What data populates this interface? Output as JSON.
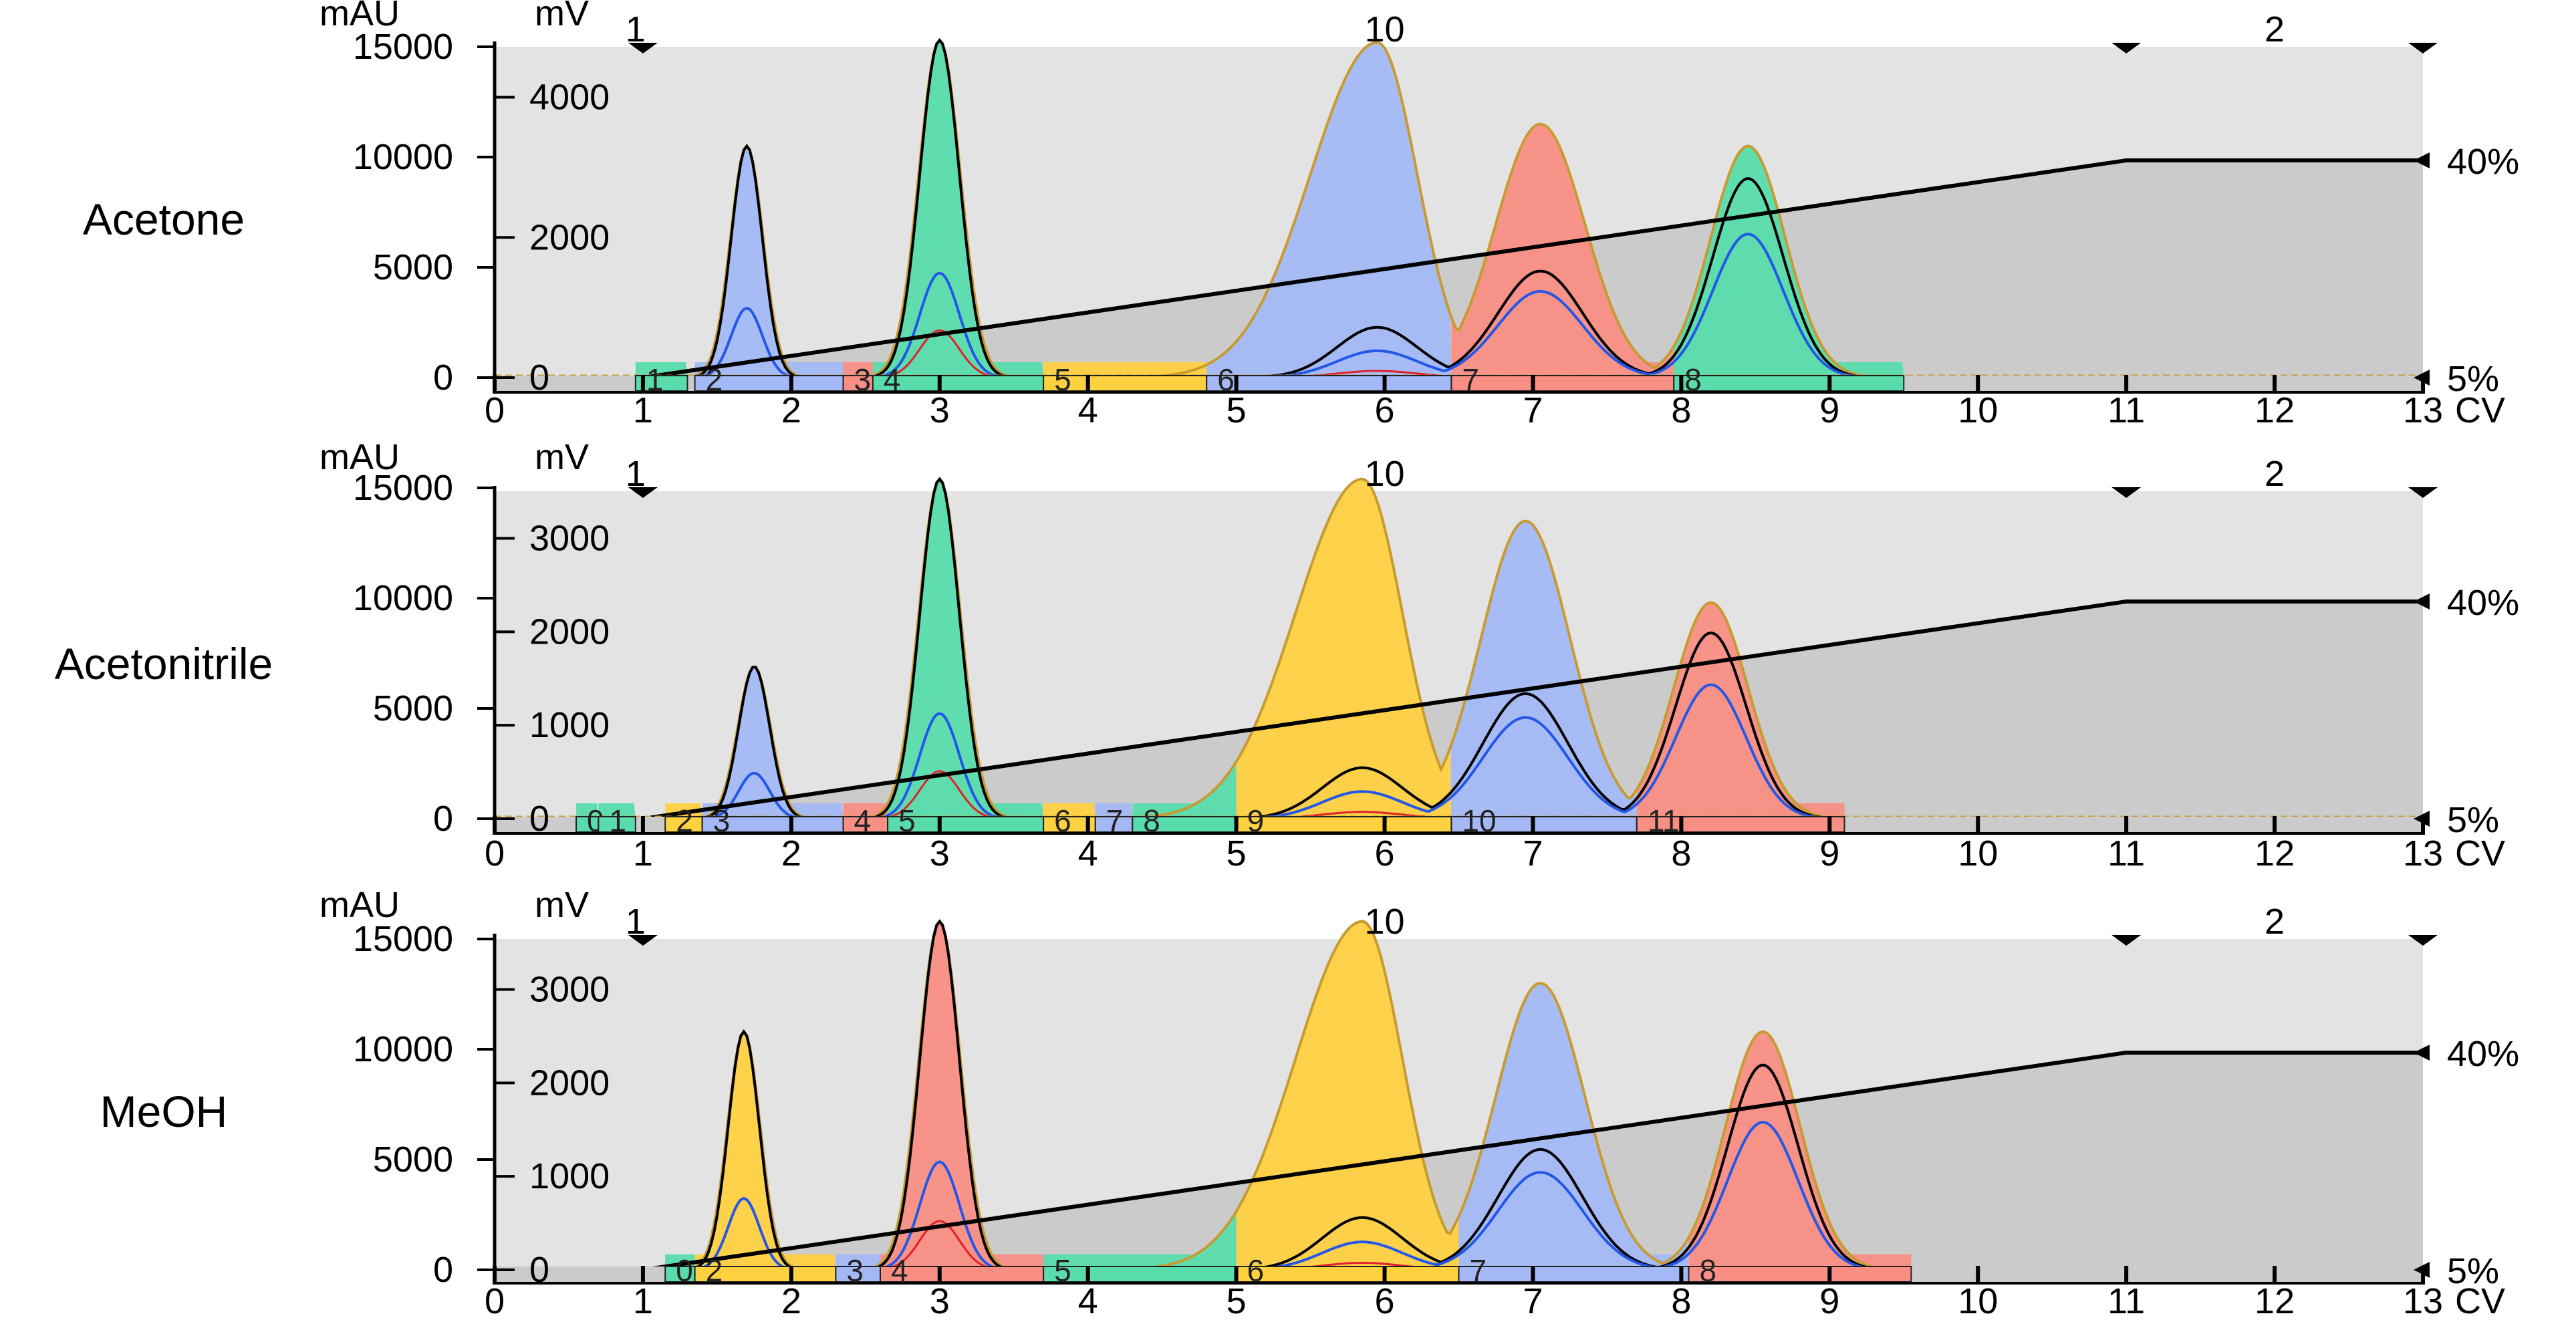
{
  "figure": {
    "x_unit": "CV",
    "x_ticks": [
      0,
      1,
      2,
      3,
      4,
      5,
      6,
      7,
      8,
      9,
      10,
      11,
      12,
      13
    ],
    "gradient_labels": [
      "40%",
      "5%"
    ],
    "segment_labels": [
      "1",
      "10",
      "2"
    ],
    "colors": {
      "background": "#e3e3e3",
      "gradient_fill": "#cbcbcb",
      "blue": "#a3b8f5",
      "green": "#58dcac",
      "red": "#f98e85",
      "yellow": "#fed141",
      "envelope": "#c79b30",
      "trace_blue": "#2357e8",
      "trace_red": "#e0202a",
      "trace_black": "#000000"
    }
  },
  "chart_data": [
    {
      "type": "line",
      "label": "Acetone",
      "y_left": {
        "unit": "mAU",
        "ticks": [
          0,
          5000,
          10000,
          15000
        ]
      },
      "y_right": {
        "unit": "mV",
        "ticks": [
          0,
          2000,
          4000
        ]
      },
      "x_range": [
        0,
        13
      ],
      "gradient_percent": {
        "x": [
          0,
          1,
          11,
          13
        ],
        "y": [
          5,
          5,
          40,
          40
        ]
      },
      "peaks": [
        {
          "x": 1.7,
          "mAU": 10500,
          "color": "blue"
        },
        {
          "x": 3.0,
          "mAU": 15300,
          "color": "green"
        },
        {
          "x": 5.95,
          "mAU": 15200,
          "color": "blue"
        },
        {
          "x": 7.05,
          "mAU": 11500,
          "color": "red"
        },
        {
          "x": 8.45,
          "mAU": 10500,
          "color": "green"
        }
      ],
      "fractions": [
        {
          "label": "1",
          "start": 0.95,
          "end": 1.3,
          "color": "green"
        },
        {
          "label": "2",
          "start": 1.35,
          "end": 2.35,
          "color": "blue"
        },
        {
          "label": "3",
          "start": 2.35,
          "end": 2.55,
          "color": "red"
        },
        {
          "label": "4",
          "start": 2.55,
          "end": 3.7,
          "color": "green"
        },
        {
          "label": "5",
          "start": 3.7,
          "end": 4.8,
          "color": "yellow"
        },
        {
          "label": "6",
          "start": 4.8,
          "end": 6.45,
          "color": "blue"
        },
        {
          "label": "7",
          "start": 6.45,
          "end": 7.95,
          "color": "red"
        },
        {
          "label": "8",
          "start": 7.95,
          "end": 9.5,
          "color": "green"
        }
      ]
    },
    {
      "type": "line",
      "label": "Acetonitrile",
      "y_left": {
        "unit": "mAU",
        "ticks": [
          0,
          5000,
          10000,
          15000
        ]
      },
      "y_right": {
        "unit": "mV",
        "ticks": [
          0,
          1000,
          2000,
          3000
        ]
      },
      "x_range": [
        0,
        13
      ],
      "gradient_percent": {
        "x": [
          0,
          1,
          11,
          13
        ],
        "y": [
          5,
          5,
          40,
          40
        ]
      },
      "peaks": [
        {
          "x": 1.75,
          "mAU": 6900,
          "color": "blue"
        },
        {
          "x": 3.0,
          "mAU": 15400,
          "color": "green"
        },
        {
          "x": 5.85,
          "mAU": 15400,
          "color": "yellow"
        },
        {
          "x": 6.95,
          "mAU": 13500,
          "color": "blue"
        },
        {
          "x": 8.2,
          "mAU": 9800,
          "color": "red"
        }
      ],
      "fractions": [
        {
          "label": "0",
          "start": 0.55,
          "end": 0.7,
          "color": "green"
        },
        {
          "label": "1",
          "start": 0.7,
          "end": 0.95,
          "color": "green"
        },
        {
          "label": "2",
          "start": 1.15,
          "end": 1.4,
          "color": "yellow"
        },
        {
          "label": "3",
          "start": 1.4,
          "end": 2.35,
          "color": "blue"
        },
        {
          "label": "4",
          "start": 2.35,
          "end": 2.65,
          "color": "red"
        },
        {
          "label": "5",
          "start": 2.65,
          "end": 3.7,
          "color": "green"
        },
        {
          "label": "6",
          "start": 3.7,
          "end": 4.05,
          "color": "yellow"
        },
        {
          "label": "7",
          "start": 4.05,
          "end": 4.3,
          "color": "blue"
        },
        {
          "label": "8",
          "start": 4.3,
          "end": 5.0,
          "color": "green"
        },
        {
          "label": "9",
          "start": 5.0,
          "end": 6.45,
          "color": "yellow"
        },
        {
          "label": "10",
          "start": 6.45,
          "end": 7.7,
          "color": "blue"
        },
        {
          "label": "11",
          "start": 7.7,
          "end": 9.1,
          "color": "red"
        }
      ]
    },
    {
      "type": "line",
      "label": "MeOH",
      "y_left": {
        "unit": "mAU",
        "ticks": [
          0,
          5000,
          10000,
          15000
        ]
      },
      "y_right": {
        "unit": "mV",
        "ticks": [
          0,
          1000,
          2000,
          3000
        ]
      },
      "x_range": [
        0,
        13
      ],
      "gradient_percent": {
        "x": [
          0,
          1,
          11,
          13
        ],
        "y": [
          5,
          5,
          40,
          40
        ]
      },
      "peaks": [
        {
          "x": 1.68,
          "mAU": 10800,
          "color": "yellow"
        },
        {
          "x": 3.0,
          "mAU": 15800,
          "color": "red"
        },
        {
          "x": 5.85,
          "mAU": 15800,
          "color": "yellow"
        },
        {
          "x": 7.05,
          "mAU": 13000,
          "color": "blue"
        },
        {
          "x": 8.55,
          "mAU": 10800,
          "color": "red"
        }
      ],
      "fractions": [
        {
          "label": "0",
          "start": 1.15,
          "end": 1.35,
          "color": "green"
        },
        {
          "label": "2",
          "start": 1.35,
          "end": 2.3,
          "color": "yellow"
        },
        {
          "label": "3",
          "start": 2.3,
          "end": 2.6,
          "color": "blue"
        },
        {
          "label": "4",
          "start": 2.6,
          "end": 3.7,
          "color": "red"
        },
        {
          "label": "5",
          "start": 3.7,
          "end": 5.0,
          "color": "green"
        },
        {
          "label": "6",
          "start": 5.0,
          "end": 6.5,
          "color": "yellow"
        },
        {
          "label": "7",
          "start": 6.5,
          "end": 8.05,
          "color": "blue"
        },
        {
          "label": "8",
          "start": 8.05,
          "end": 9.55,
          "color": "red"
        }
      ]
    }
  ]
}
